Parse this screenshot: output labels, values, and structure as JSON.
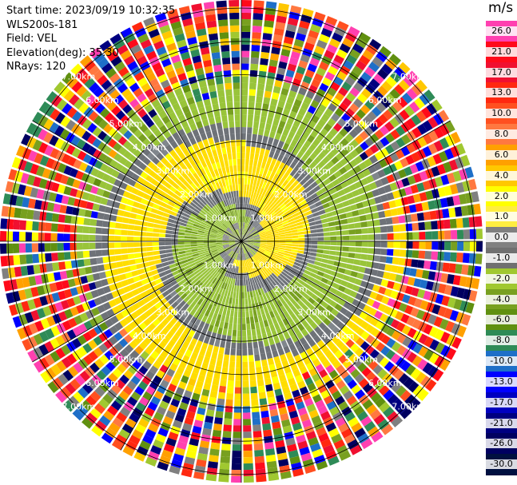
{
  "info": {
    "start_time": "Start time: 2023/09/19 10:32:35",
    "instrument": "WLS200s-181",
    "field": "Field: VEL",
    "elevation": "Elevation(deg): 35.30",
    "nrays": "NRays: 120"
  },
  "colorbar": {
    "unit": "m/s",
    "ticks": [
      "26.0",
      "21.0",
      "17.0",
      "13.0",
      "10.0",
      "8.0",
      "6.0",
      "4.0",
      "2.0",
      "1.0",
      "0.0",
      "-1.0",
      "-2.0",
      "-4.0",
      "-6.0",
      "-8.0",
      "-10.0",
      "-13.0",
      "-17.0",
      "-21.0",
      "-26.0",
      "-30.0"
    ],
    "colors": [
      "#ff40b0",
      "#ff0a1a",
      "#f01030",
      "#ff2810",
      "#ff5020",
      "#ff7840",
      "#ffa000",
      "#ffc800",
      "#ffff00",
      "#ffee40",
      "#808080",
      "#707070",
      "#a0c830",
      "#78a020",
      "#609010",
      "#2e8b57",
      "#1e6fc8",
      "#0000ff",
      "#0000c0",
      "#000080",
      "#000060",
      "#001040"
    ]
  },
  "map": {
    "range_rings_km": [
      "1.00km",
      "2.00km",
      "3.00km",
      "4.00km",
      "5.00km",
      "6.00km",
      "7.00km"
    ],
    "n_rays": 120
  }
}
